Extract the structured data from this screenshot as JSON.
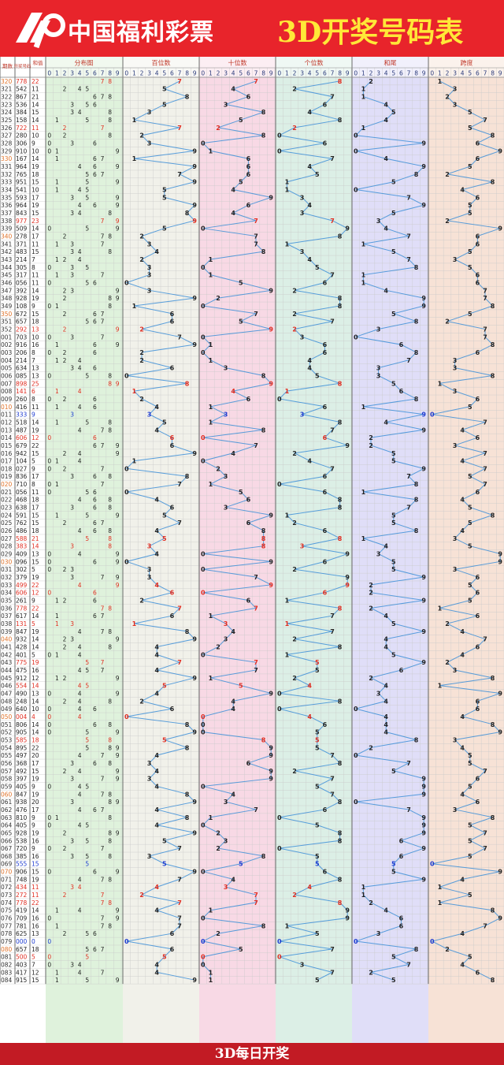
{
  "header": {
    "brand": "中国福利彩票",
    "title": "3D开奖号码表",
    "bg_color": "#e8242b",
    "title_color": "#ffe838"
  },
  "footer": {
    "text": "3D每日开奖"
  },
  "chart_data": {
    "type": "table",
    "columns": {
      "period": "期数",
      "number": "开奖号码",
      "sum": "和值",
      "distribution": "分布图",
      "hundreds": "百位数",
      "tens": "十位数",
      "units": "个位数",
      "sum_tail": "和尾",
      "span": "跨度"
    },
    "digit_headers": [
      "0",
      "1",
      "2",
      "3",
      "4",
      "5",
      "6",
      "7",
      "8",
      "9"
    ],
    "colors": {
      "distribution": "#dff2dc",
      "hundreds": "#f1f1ea",
      "tens": "#f8d9e5",
      "units": "#dcefe6",
      "sum_tail": "#e0def8",
      "span": "#f7e2d6",
      "line": "#3d8fd8",
      "red": "#e02c20",
      "blue": "#1c3ad0",
      "period_orange": "#e0732a"
    },
    "rows": [
      [
        "320",
        "778",
        "22"
      ],
      [
        "321",
        "542",
        "11"
      ],
      [
        "322",
        "867",
        "21"
      ],
      [
        "323",
        "536",
        "14"
      ],
      [
        "324",
        "384",
        "15"
      ],
      [
        "325",
        "158",
        "14"
      ],
      [
        "326",
        "722",
        "11"
      ],
      [
        "327",
        "280",
        "10"
      ],
      [
        "328",
        "306",
        "9"
      ],
      [
        "329",
        "910",
        "10"
      ],
      [
        "330",
        "167",
        "14"
      ],
      [
        "331",
        "964",
        "19"
      ],
      [
        "332",
        "765",
        "18"
      ],
      [
        "333",
        "951",
        "15"
      ],
      [
        "334",
        "541",
        "10"
      ],
      [
        "335",
        "593",
        "17"
      ],
      [
        "336",
        "964",
        "19"
      ],
      [
        "337",
        "843",
        "15"
      ],
      [
        "338",
        "977",
        "23"
      ],
      [
        "339",
        "509",
        "14"
      ],
      [
        "340",
        "278",
        "17"
      ],
      [
        "341",
        "371",
        "11"
      ],
      [
        "342",
        "483",
        "15"
      ],
      [
        "343",
        "214",
        "7"
      ],
      [
        "344",
        "305",
        "8"
      ],
      [
        "345",
        "317",
        "11"
      ],
      [
        "346",
        "056",
        "11"
      ],
      [
        "347",
        "392",
        "14"
      ],
      [
        "348",
        "928",
        "19"
      ],
      [
        "349",
        "108",
        "9"
      ],
      [
        "350",
        "672",
        "15"
      ],
      [
        "351",
        "657",
        "18"
      ],
      [
        "352",
        "292",
        "13"
      ],
      [
        "001",
        "703",
        "10"
      ],
      [
        "002",
        "916",
        "16"
      ],
      [
        "003",
        "206",
        "8"
      ],
      [
        "004",
        "214",
        "7"
      ],
      [
        "005",
        "634",
        "13"
      ],
      [
        "006",
        "085",
        "13"
      ],
      [
        "007",
        "898",
        "25"
      ],
      [
        "008",
        "141",
        "6"
      ],
      [
        "009",
        "260",
        "8"
      ],
      [
        "010",
        "416",
        "11"
      ],
      [
        "011",
        "333",
        "9"
      ],
      [
        "012",
        "518",
        "14"
      ],
      [
        "013",
        "487",
        "19"
      ],
      [
        "014",
        "606",
        "12"
      ],
      [
        "015",
        "679",
        "22"
      ],
      [
        "016",
        "942",
        "15"
      ],
      [
        "017",
        "104",
        "5"
      ],
      [
        "018",
        "027",
        "9"
      ],
      [
        "019",
        "836",
        "17"
      ],
      [
        "020",
        "710",
        "8"
      ],
      [
        "021",
        "056",
        "11"
      ],
      [
        "022",
        "468",
        "18"
      ],
      [
        "023",
        "638",
        "17"
      ],
      [
        "024",
        "591",
        "15"
      ],
      [
        "025",
        "762",
        "15"
      ],
      [
        "026",
        "486",
        "18"
      ],
      [
        "027",
        "588",
        "21"
      ],
      [
        "028",
        "383",
        "14"
      ],
      [
        "029",
        "409",
        "13"
      ],
      [
        "030",
        "096",
        "15"
      ],
      [
        "031",
        "302",
        "5"
      ],
      [
        "032",
        "379",
        "19"
      ],
      [
        "033",
        "499",
        "22"
      ],
      [
        "034",
        "606",
        "12"
      ],
      [
        "035",
        "261",
        "9"
      ],
      [
        "036",
        "778",
        "22"
      ],
      [
        "037",
        "617",
        "14"
      ],
      [
        "038",
        "131",
        "5"
      ],
      [
        "039",
        "847",
        "19"
      ],
      [
        "040",
        "932",
        "14"
      ],
      [
        "041",
        "428",
        "14"
      ],
      [
        "042",
        "401",
        "5"
      ],
      [
        "043",
        "775",
        "19"
      ],
      [
        "044",
        "475",
        "16"
      ],
      [
        "045",
        "912",
        "12"
      ],
      [
        "046",
        "554",
        "14"
      ],
      [
        "047",
        "490",
        "13"
      ],
      [
        "048",
        "248",
        "14"
      ],
      [
        "049",
        "640",
        "10"
      ],
      [
        "050",
        "004",
        "4"
      ],
      [
        "051",
        "806",
        "14"
      ],
      [
        "052",
        "905",
        "14"
      ],
      [
        "053",
        "585",
        "18"
      ],
      [
        "054",
        "895",
        "22"
      ],
      [
        "055",
        "497",
        "20"
      ],
      [
        "056",
        "368",
        "17"
      ],
      [
        "057",
        "492",
        "15"
      ],
      [
        "058",
        "397",
        "19"
      ],
      [
        "059",
        "405",
        "9"
      ],
      [
        "060",
        "847",
        "19"
      ],
      [
        "061",
        "938",
        "20"
      ],
      [
        "062",
        "476",
        "17"
      ],
      [
        "063",
        "810",
        "9"
      ],
      [
        "064",
        "405",
        "9"
      ],
      [
        "065",
        "928",
        "19"
      ],
      [
        "066",
        "538",
        "16"
      ],
      [
        "067",
        "720",
        "9"
      ],
      [
        "068",
        "385",
        "16"
      ],
      [
        "069",
        "555",
        "15"
      ],
      [
        "070",
        "906",
        "15"
      ],
      [
        "071",
        "748",
        "19"
      ],
      [
        "072",
        "434",
        "11"
      ],
      [
        "073",
        "272",
        "11"
      ],
      [
        "074",
        "778",
        "22"
      ],
      [
        "075",
        "419",
        "14"
      ],
      [
        "076",
        "709",
        "16"
      ],
      [
        "077",
        "781",
        "16"
      ],
      [
        "078",
        "625",
        "13"
      ],
      [
        "079",
        "000",
        "0"
      ],
      [
        "080",
        "657",
        "18"
      ],
      [
        "081",
        "500",
        "5"
      ],
      [
        "082",
        "403",
        "7"
      ],
      [
        "083",
        "417",
        "12"
      ],
      [
        "084",
        "915",
        "15"
      ]
    ]
  }
}
